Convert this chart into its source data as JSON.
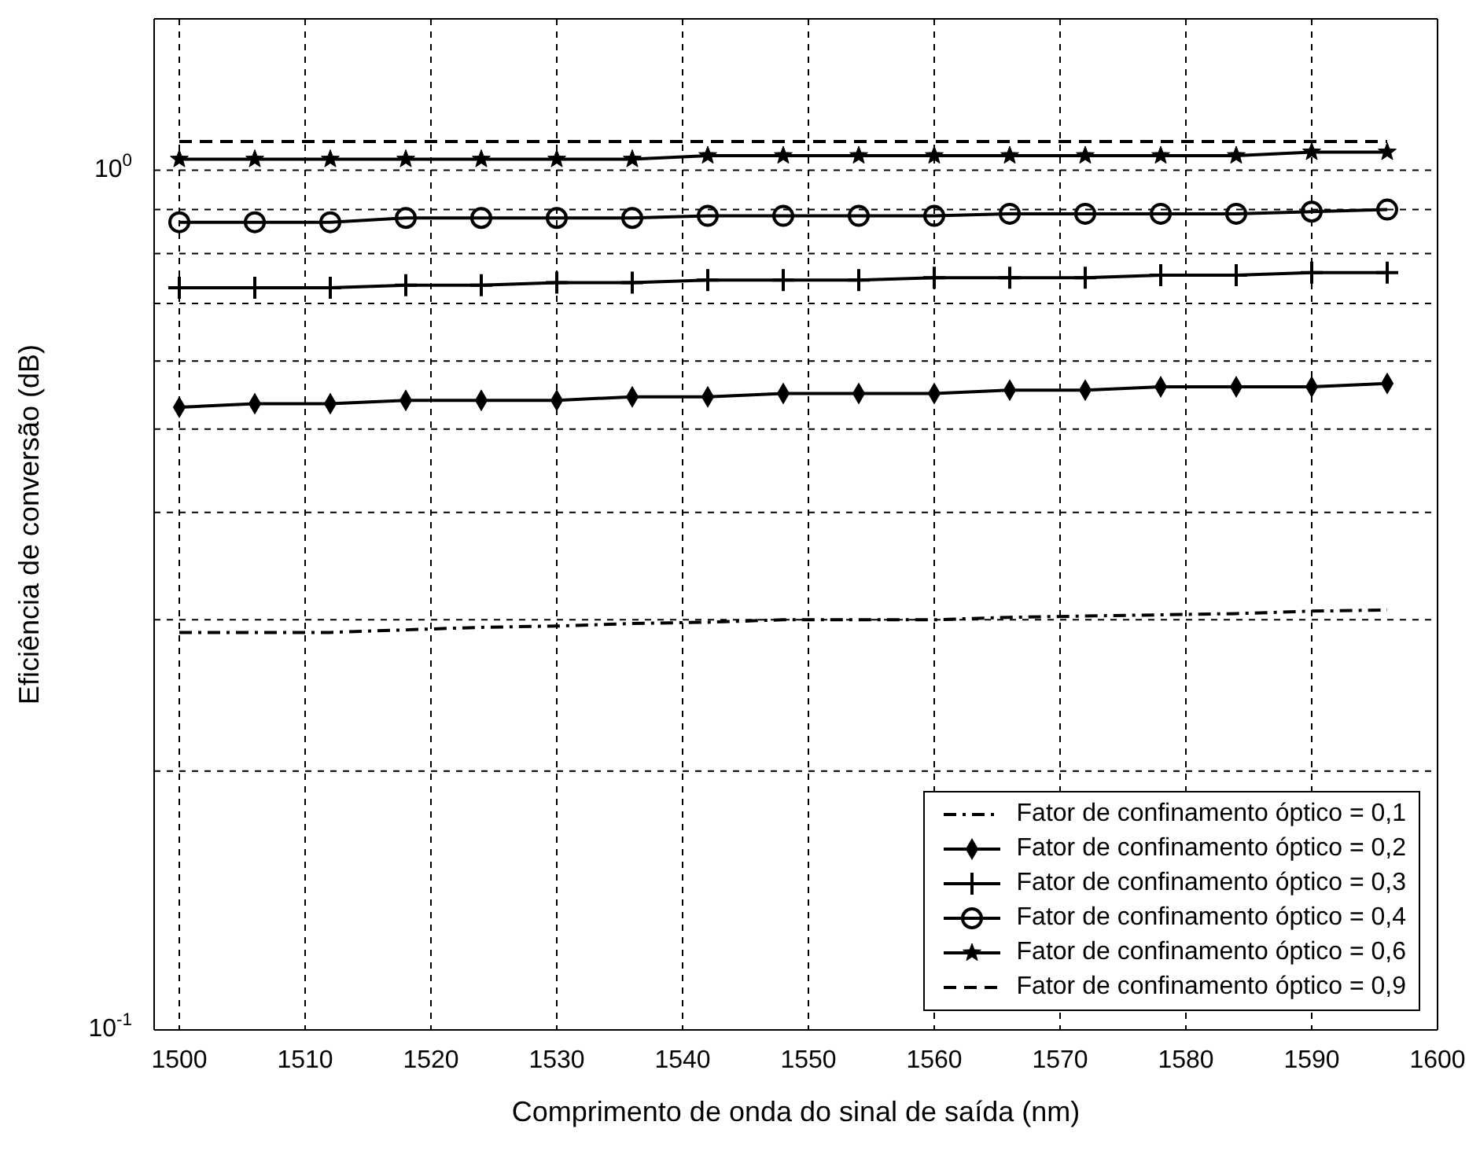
{
  "chart_data": {
    "type": "line",
    "xlabel": "Comprimento de onda do sinal de saída (nm)",
    "ylabel": "Eficiência de conversão (dB)",
    "x": [
      1500,
      1506,
      1512,
      1518,
      1524,
      1530,
      1536,
      1542,
      1548,
      1554,
      1560,
      1566,
      1572,
      1578,
      1584,
      1590,
      1596
    ],
    "xlim": [
      1498,
      1600
    ],
    "xticks": [
      1500,
      1510,
      1520,
      1530,
      1540,
      1550,
      1560,
      1570,
      1580,
      1590,
      1600
    ],
    "ylim": [
      0.1,
      1.5
    ],
    "yticks": [
      {
        "value": 0.1,
        "label": "10$^{-1}$"
      },
      {
        "value": 0.2,
        "label": null
      },
      {
        "value": 0.3,
        "label": null
      },
      {
        "value": 0.4,
        "label": null
      },
      {
        "value": 0.5,
        "label": null
      },
      {
        "value": 0.6,
        "label": null
      },
      {
        "value": 0.7,
        "label": null
      },
      {
        "value": 0.8,
        "label": null
      },
      {
        "value": 0.9,
        "label": null
      },
      {
        "value": 1,
        "label": "10$^{0}$"
      }
    ],
    "log": "y",
    "grid": true,
    "legend": "bottom right",
    "series": [
      {
        "name": "Fator de confinamento óptico = 0,1",
        "color": "#000000",
        "marker": "none",
        "line_style": "dashdot",
        "values": [
          0.29,
          0.29,
          0.29,
          0.292,
          0.294,
          0.295,
          0.297,
          0.298,
          0.3,
          0.3,
          0.3,
          0.302,
          0.303,
          0.304,
          0.305,
          0.307,
          0.308
        ]
      },
      {
        "name": "Fator de confinamento óptico = 0,2",
        "color": "#000000",
        "marker": "diamond",
        "line_style": "solid",
        "values": [
          0.53,
          0.535,
          0.535,
          0.54,
          0.54,
          0.54,
          0.545,
          0.545,
          0.55,
          0.55,
          0.55,
          0.555,
          0.555,
          0.56,
          0.56,
          0.56,
          0.565
        ]
      },
      {
        "name": "Fator de confinamento óptico = 0,3",
        "color": "#000000",
        "marker": "cross",
        "line_style": "solid",
        "values": [
          0.73,
          0.73,
          0.73,
          0.735,
          0.735,
          0.74,
          0.74,
          0.745,
          0.745,
          0.745,
          0.75,
          0.75,
          0.75,
          0.755,
          0.755,
          0.76,
          0.76
        ]
      },
      {
        "name": "Fator de confinamento óptico = 0,4",
        "color": "#000000",
        "marker": "circle",
        "line_style": "solid",
        "values": [
          0.87,
          0.87,
          0.87,
          0.88,
          0.88,
          0.88,
          0.88,
          0.885,
          0.885,
          0.885,
          0.885,
          0.89,
          0.89,
          0.89,
          0.89,
          0.895,
          0.9
        ]
      },
      {
        "name": "Fator de confinamento óptico = 0,6",
        "color": "#000000",
        "marker": "star",
        "line_style": "solid",
        "values": [
          1.03,
          1.03,
          1.03,
          1.03,
          1.03,
          1.03,
          1.03,
          1.04,
          1.04,
          1.04,
          1.04,
          1.04,
          1.04,
          1.04,
          1.04,
          1.05,
          1.05
        ]
      },
      {
        "name": "Fator de confinamento óptico = 0,9",
        "color": "#000000",
        "marker": "none",
        "line_style": "dashed",
        "values": [
          1.08,
          1.08,
          1.08,
          1.08,
          1.08,
          1.08,
          1.08,
          1.08,
          1.08,
          1.08,
          1.08,
          1.08,
          1.08,
          1.08,
          1.08,
          1.08,
          1.08
        ]
      }
    ]
  }
}
